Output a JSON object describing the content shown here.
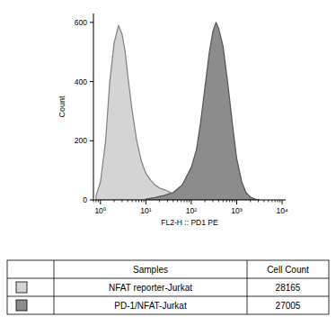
{
  "chart_data": {
    "type": "area",
    "x_label": "FL2-H :: PD1 PE",
    "y_label": "Count",
    "log": "x",
    "xlim": [
      0.7,
      12000
    ],
    "ylim": [
      0,
      630
    ],
    "xticks": [
      {
        "value": 1,
        "label": "10⁰"
      },
      {
        "value": 10,
        "label": "10¹"
      },
      {
        "value": 100,
        "label": "10²"
      },
      {
        "value": 1000,
        "label": "10³"
      },
      {
        "value": 10000,
        "label": "10⁴"
      }
    ],
    "yticks": [
      0,
      200,
      400,
      600
    ],
    "legend_header": [
      "Samples",
      "Cell Count"
    ],
    "series": [
      {
        "name": "NFAT reporter-Jurkat",
        "color": "#d4d4d4",
        "cell_count": 28165,
        "x": [
          0.8,
          1.0,
          1.3,
          1.6,
          2.0,
          2.5,
          3.0,
          3.5,
          4.0,
          5.0,
          6.3,
          8.0,
          10,
          13,
          16,
          20,
          25,
          32,
          40,
          50,
          63,
          80,
          100,
          130
        ],
        "values": [
          15,
          60,
          200,
          400,
          530,
          590,
          560,
          500,
          420,
          300,
          200,
          130,
          90,
          65,
          50,
          40,
          35,
          28,
          20,
          15,
          10,
          6,
          3,
          0
        ]
      },
      {
        "name": "PD-1/NFAT-Jurkat",
        "color": "#8c8c8c",
        "cell_count": 27005,
        "x": [
          10,
          16,
          25,
          40,
          63,
          100,
          130,
          160,
          200,
          250,
          300,
          350,
          400,
          500,
          630,
          800,
          1000,
          1300,
          1600,
          2000,
          2500,
          3200
        ],
        "values": [
          3,
          8,
          15,
          25,
          50,
          110,
          170,
          260,
          380,
          500,
          570,
          600,
          580,
          520,
          400,
          260,
          140,
          60,
          25,
          10,
          3,
          0
        ]
      }
    ]
  }
}
